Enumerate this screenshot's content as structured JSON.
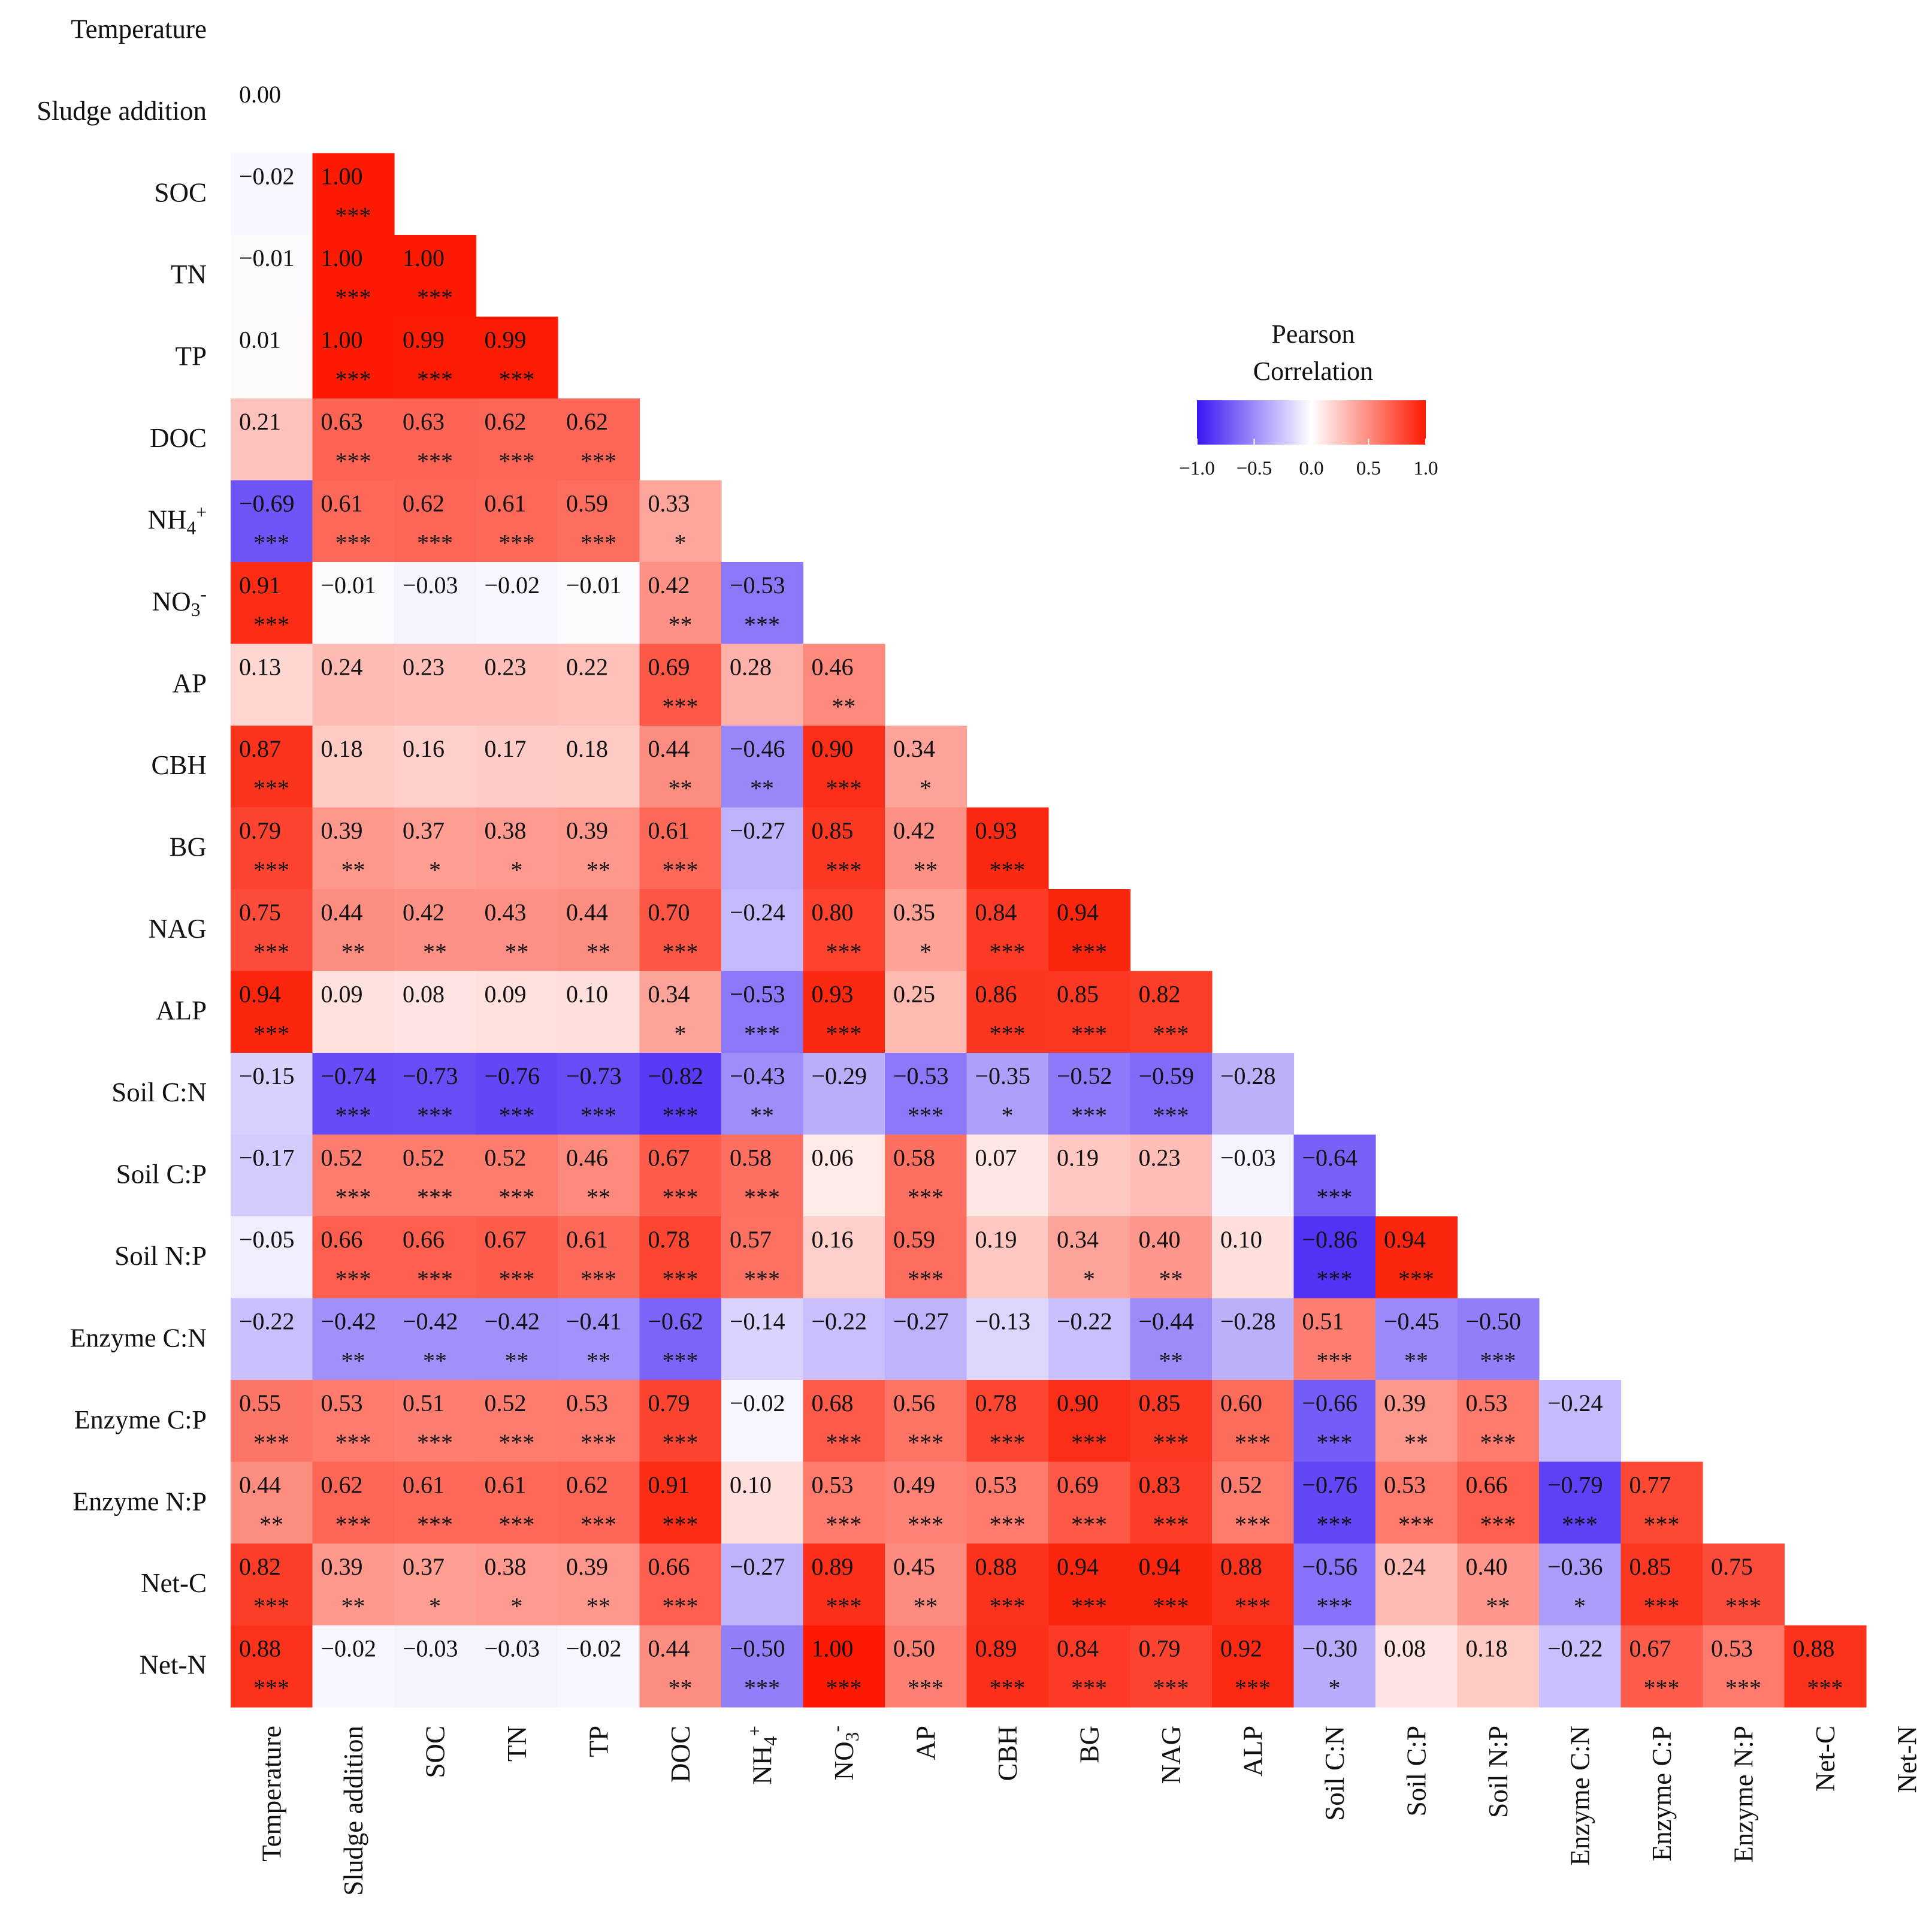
{
  "chart_data": {
    "type": "heatmap",
    "title": "",
    "legend": {
      "title_line1": "Pearson",
      "title_line2": "Correlation",
      "ticks": [
        "−1.0",
        "−0.5",
        "0.0",
        "0.5",
        "1.0"
      ],
      "tick_values": [
        -1.0,
        -0.5,
        0.0,
        0.5,
        1.0
      ],
      "range": [
        -1,
        1
      ],
      "low_color": "#3a16f4",
      "mid_color": "#ffffff",
      "high_color": "#fc1a02"
    },
    "row_labels": [
      {
        "text": "Temperature"
      },
      {
        "text": "Sludge addition"
      },
      {
        "text": "SOC"
      },
      {
        "text": "TN"
      },
      {
        "text": "TP"
      },
      {
        "text": "DOC"
      },
      {
        "text": "NH",
        "sub": "4",
        "sup": "+"
      },
      {
        "text": "NO",
        "sub": "3",
        "sup": "-"
      },
      {
        "text": "AP"
      },
      {
        "text": "CBH"
      },
      {
        "text": "BG"
      },
      {
        "text": "NAG"
      },
      {
        "text": "ALP"
      },
      {
        "text": "Soil C:N"
      },
      {
        "text": "Soil C:P"
      },
      {
        "text": "Soil N:P"
      },
      {
        "text": "Enzyme C:N",
        "sans": true
      },
      {
        "text": "Enzyme C:P",
        "sans": true
      },
      {
        "text": "Enzyme N:P",
        "sans": true
      },
      {
        "text": "Net-C"
      },
      {
        "text": "Net-N"
      }
    ],
    "col_labels": [
      {
        "text": "Temperature"
      },
      {
        "text": "Sludge addition"
      },
      {
        "text": "SOC"
      },
      {
        "text": "TN"
      },
      {
        "text": "TP"
      },
      {
        "text": "DOC"
      },
      {
        "text": "NH",
        "sub": "4",
        "sup": "+"
      },
      {
        "text": "NO",
        "sub": "3",
        "sup": "-"
      },
      {
        "text": "AP"
      },
      {
        "text": "CBH"
      },
      {
        "text": "BG"
      },
      {
        "text": "NAG"
      },
      {
        "text": "ALP"
      },
      {
        "text": "Soil C:N"
      },
      {
        "text": "Soil C:P"
      },
      {
        "text": "Soil N:P"
      },
      {
        "text": "Enzyme C:N"
      },
      {
        "text": "Enzyme C:P"
      },
      {
        "text": "Enzyme N:P"
      },
      {
        "text": "Net-C"
      },
      {
        "text": "Net-N"
      }
    ],
    "rows": [
      [],
      [
        [
          "0.00",
          ""
        ]
      ],
      [
        [
          "−0.02",
          ""
        ],
        [
          "1.00",
          "***"
        ]
      ],
      [
        [
          "−0.01",
          ""
        ],
        [
          "1.00",
          "***"
        ],
        [
          "1.00",
          "***"
        ]
      ],
      [
        [
          "0.01",
          ""
        ],
        [
          "1.00",
          "***"
        ],
        [
          "0.99",
          "***"
        ],
        [
          "0.99",
          "***"
        ]
      ],
      [
        [
          "0.21",
          ""
        ],
        [
          "0.63",
          "***"
        ],
        [
          "0.63",
          "***"
        ],
        [
          "0.62",
          "***"
        ],
        [
          "0.62",
          "***"
        ]
      ],
      [
        [
          "−0.69",
          "***"
        ],
        [
          "0.61",
          "***"
        ],
        [
          "0.62",
          "***"
        ],
        [
          "0.61",
          "***"
        ],
        [
          "0.59",
          "***"
        ],
        [
          "0.33",
          "*"
        ]
      ],
      [
        [
          "0.91",
          "***"
        ],
        [
          "−0.01",
          ""
        ],
        [
          "−0.03",
          ""
        ],
        [
          "−0.02",
          ""
        ],
        [
          "−0.01",
          ""
        ],
        [
          "0.42",
          "**"
        ],
        [
          "−0.53",
          "***"
        ]
      ],
      [
        [
          "0.13",
          ""
        ],
        [
          "0.24",
          ""
        ],
        [
          "0.23",
          ""
        ],
        [
          "0.23",
          ""
        ],
        [
          "0.22",
          ""
        ],
        [
          "0.69",
          "***"
        ],
        [
          "0.28",
          ""
        ],
        [
          "0.46",
          "**"
        ]
      ],
      [
        [
          "0.87",
          "***"
        ],
        [
          "0.18",
          ""
        ],
        [
          "0.16",
          ""
        ],
        [
          "0.17",
          ""
        ],
        [
          "0.18",
          ""
        ],
        [
          "0.44",
          "**"
        ],
        [
          "−0.46",
          "**"
        ],
        [
          "0.90",
          "***"
        ],
        [
          "0.34",
          "*"
        ]
      ],
      [
        [
          "0.79",
          "***"
        ],
        [
          "0.39",
          "**"
        ],
        [
          "0.37",
          "*"
        ],
        [
          "0.38",
          "*"
        ],
        [
          "0.39",
          "**"
        ],
        [
          "0.61",
          "***"
        ],
        [
          "−0.27",
          ""
        ],
        [
          "0.85",
          "***"
        ],
        [
          "0.42",
          "**"
        ],
        [
          "0.93",
          "***"
        ]
      ],
      [
        [
          "0.75",
          "***"
        ],
        [
          "0.44",
          "**"
        ],
        [
          "0.42",
          "**"
        ],
        [
          "0.43",
          "**"
        ],
        [
          "0.44",
          "**"
        ],
        [
          "0.70",
          "***"
        ],
        [
          "−0.24",
          ""
        ],
        [
          "0.80",
          "***"
        ],
        [
          "0.35",
          "*"
        ],
        [
          "0.84",
          "***"
        ],
        [
          "0.94",
          "***"
        ]
      ],
      [
        [
          "0.94",
          "***"
        ],
        [
          "0.09",
          ""
        ],
        [
          "0.08",
          ""
        ],
        [
          "0.09",
          ""
        ],
        [
          "0.10",
          ""
        ],
        [
          "0.34",
          "*"
        ],
        [
          "−0.53",
          "***"
        ],
        [
          "0.93",
          "***"
        ],
        [
          "0.25",
          ""
        ],
        [
          "0.86",
          "***"
        ],
        [
          "0.85",
          "***"
        ],
        [
          "0.82",
          "***"
        ]
      ],
      [
        [
          "−0.15",
          ""
        ],
        [
          "−0.74",
          "***"
        ],
        [
          "−0.73",
          "***"
        ],
        [
          "−0.76",
          "***"
        ],
        [
          "−0.73",
          "***"
        ],
        [
          "−0.82",
          "***"
        ],
        [
          "−0.43",
          "**"
        ],
        [
          "−0.29",
          ""
        ],
        [
          "−0.53",
          "***"
        ],
        [
          "−0.35",
          "*"
        ],
        [
          "−0.52",
          "***"
        ],
        [
          "−0.59",
          "***"
        ],
        [
          "−0.28",
          ""
        ]
      ],
      [
        [
          "−0.17",
          ""
        ],
        [
          "0.52",
          "***"
        ],
        [
          "0.52",
          "***"
        ],
        [
          "0.52",
          "***"
        ],
        [
          "0.46",
          "**"
        ],
        [
          "0.67",
          "***"
        ],
        [
          "0.58",
          "***"
        ],
        [
          "0.06",
          ""
        ],
        [
          "0.58",
          "***"
        ],
        [
          "0.07",
          ""
        ],
        [
          "0.19",
          ""
        ],
        [
          "0.23",
          ""
        ],
        [
          "−0.03",
          ""
        ],
        [
          "−0.64",
          "***"
        ]
      ],
      [
        [
          "−0.05",
          ""
        ],
        [
          "0.66",
          "***"
        ],
        [
          "0.66",
          "***"
        ],
        [
          "0.67",
          "***"
        ],
        [
          "0.61",
          "***"
        ],
        [
          "0.78",
          "***"
        ],
        [
          "0.57",
          "***"
        ],
        [
          "0.16",
          ""
        ],
        [
          "0.59",
          "***"
        ],
        [
          "0.19",
          ""
        ],
        [
          "0.34",
          "*"
        ],
        [
          "0.40",
          "**"
        ],
        [
          "0.10",
          ""
        ],
        [
          "−0.86",
          "***"
        ],
        [
          "0.94",
          "***"
        ]
      ],
      [
        [
          "−0.22",
          ""
        ],
        [
          "−0.42",
          "**"
        ],
        [
          "−0.42",
          "**"
        ],
        [
          "−0.42",
          "**"
        ],
        [
          "−0.41",
          "**"
        ],
        [
          "−0.62",
          "***"
        ],
        [
          "−0.14",
          ""
        ],
        [
          "−0.22",
          ""
        ],
        [
          "−0.27",
          ""
        ],
        [
          "−0.13",
          ""
        ],
        [
          "−0.22",
          ""
        ],
        [
          "−0.44",
          "**"
        ],
        [
          "−0.28",
          ""
        ],
        [
          "0.51",
          "***"
        ],
        [
          "−0.45",
          "**"
        ],
        [
          "−0.50",
          "***"
        ]
      ],
      [
        [
          "0.55",
          "***"
        ],
        [
          "0.53",
          "***"
        ],
        [
          "0.51",
          "***"
        ],
        [
          "0.52",
          "***"
        ],
        [
          "0.53",
          "***"
        ],
        [
          "0.79",
          "***"
        ],
        [
          "−0.02",
          ""
        ],
        [
          "0.68",
          "***"
        ],
        [
          "0.56",
          "***"
        ],
        [
          "0.78",
          "***"
        ],
        [
          "0.90",
          "***"
        ],
        [
          "0.85",
          "***"
        ],
        [
          "0.60",
          "***"
        ],
        [
          "−0.66",
          "***"
        ],
        [
          "0.39",
          "**"
        ],
        [
          "0.53",
          "***"
        ],
        [
          "−0.24",
          ""
        ]
      ],
      [
        [
          "0.44",
          "**"
        ],
        [
          "0.62",
          "***"
        ],
        [
          "0.61",
          "***"
        ],
        [
          "0.61",
          "***"
        ],
        [
          "0.62",
          "***"
        ],
        [
          "0.91",
          "***"
        ],
        [
          "0.10",
          ""
        ],
        [
          "0.53",
          "***"
        ],
        [
          "0.49",
          "***"
        ],
        [
          "0.53",
          "***"
        ],
        [
          "0.69",
          "***"
        ],
        [
          "0.83",
          "***"
        ],
        [
          "0.52",
          "***"
        ],
        [
          "−0.76",
          "***"
        ],
        [
          "0.53",
          "***"
        ],
        [
          "0.66",
          "***"
        ],
        [
          "−0.79",
          "***"
        ],
        [
          "0.77",
          "***"
        ]
      ],
      [
        [
          "0.82",
          "***"
        ],
        [
          "0.39",
          "**"
        ],
        [
          "0.37",
          "*"
        ],
        [
          "0.38",
          "*"
        ],
        [
          "0.39",
          "**"
        ],
        [
          "0.66",
          "***"
        ],
        [
          "−0.27",
          ""
        ],
        [
          "0.89",
          "***"
        ],
        [
          "0.45",
          "**"
        ],
        [
          "0.88",
          "***"
        ],
        [
          "0.94",
          "***"
        ],
        [
          "0.94",
          "***"
        ],
        [
          "0.88",
          "***"
        ],
        [
          "−0.56",
          "***"
        ],
        [
          "0.24",
          ""
        ],
        [
          "0.40",
          "**"
        ],
        [
          "−0.36",
          "*"
        ],
        [
          "0.85",
          "***"
        ],
        [
          "0.75",
          "***"
        ]
      ],
      [
        [
          "0.88",
          "***"
        ],
        [
          "−0.02",
          ""
        ],
        [
          "−0.03",
          ""
        ],
        [
          "−0.03",
          ""
        ],
        [
          "−0.02",
          ""
        ],
        [
          "0.44",
          "**"
        ],
        [
          "−0.50",
          "***"
        ],
        [
          "1.00",
          "***"
        ],
        [
          "0.50",
          "***"
        ],
        [
          "0.89",
          "***"
        ],
        [
          "0.84",
          "***"
        ],
        [
          "0.79",
          "***"
        ],
        [
          "0.92",
          "***"
        ],
        [
          "−0.30",
          "*"
        ],
        [
          "0.08",
          ""
        ],
        [
          "0.18",
          ""
        ],
        [
          "−0.22",
          ""
        ],
        [
          "0.67",
          "***"
        ],
        [
          "0.53",
          "***"
        ],
        [
          "0.88",
          "***"
        ]
      ]
    ]
  }
}
